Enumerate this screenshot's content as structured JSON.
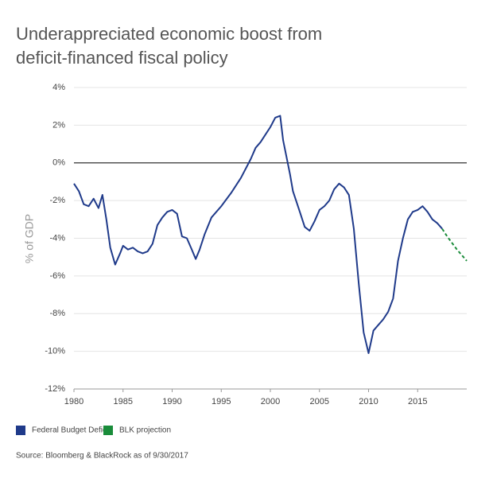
{
  "chart_data": {
    "type": "line",
    "title_lines": [
      "Underappreciated economic boost from",
      "deficit-financed fiscal policy"
    ],
    "y_label": "% of GDP",
    "source": "Source: Bloomberg & BlackRock as of 9/30/2017",
    "xlim": [
      1980,
      2020
    ],
    "xticks": [
      1980,
      1985,
      1990,
      1995,
      2000,
      2005,
      2010,
      2015
    ],
    "ylim": [
      -12,
      4
    ],
    "yticks": [
      {
        "value": 4,
        "label": "4%"
      },
      {
        "value": 2,
        "label": "2%"
      },
      {
        "value": 0,
        "label": "0%"
      },
      {
        "value": -2,
        "label": "-2%"
      },
      {
        "value": -4,
        "label": "-4%"
      },
      {
        "value": -6,
        "label": "-6%"
      },
      {
        "value": -8,
        "label": "-8%"
      },
      {
        "value": -10,
        "label": "-10%"
      },
      {
        "value": -12,
        "label": "-12%"
      }
    ],
    "grid": true,
    "series": [
      {
        "name": "Federal Budget Deficit",
        "color": "#1f3a8a",
        "dashed": false,
        "x": [
          1980,
          1980.5,
          1981,
          1981.5,
          1982,
          1982.5,
          1982.9,
          1983.3,
          1983.7,
          1984.2,
          1984.7,
          1985,
          1985.5,
          1986,
          1986.5,
          1987,
          1987.5,
          1988,
          1988.5,
          1989,
          1989.5,
          1990,
          1990.5,
          1991,
          1991.5,
          1992,
          1992.4,
          1992.8,
          1993.3,
          1994,
          1995,
          1996,
          1997,
          1998,
          1998.5,
          1999,
          1999.5,
          2000,
          2000.5,
          2001,
          2001.3,
          2002,
          2002.3,
          2003,
          2003.5,
          2004,
          2004.5,
          2005,
          2005.5,
          2006,
          2006.5,
          2007,
          2007.5,
          2008,
          2008.5,
          2009,
          2009.5,
          2010,
          2010.5,
          2011,
          2011.5,
          2012,
          2012.5,
          2013,
          2013.5,
          2014,
          2014.5,
          2015,
          2015.5,
          2016,
          2016.5,
          2017,
          2017.5
        ],
        "values": [
          -1.1,
          -1.5,
          -2.2,
          -2.3,
          -1.9,
          -2.4,
          -1.7,
          -3.0,
          -4.5,
          -5.4,
          -4.8,
          -4.4,
          -4.6,
          -4.5,
          -4.7,
          -4.8,
          -4.7,
          -4.3,
          -3.3,
          -2.9,
          -2.6,
          -2.5,
          -2.7,
          -3.9,
          -4.0,
          -4.6,
          -5.1,
          -4.6,
          -3.8,
          -2.9,
          -2.3,
          -1.6,
          -0.8,
          0.2,
          0.8,
          1.1,
          1.5,
          1.9,
          2.4,
          2.5,
          1.2,
          -0.6,
          -1.5,
          -2.6,
          -3.4,
          -3.6,
          -3.1,
          -2.5,
          -2.3,
          -2.0,
          -1.4,
          -1.1,
          -1.3,
          -1.7,
          -3.5,
          -6.4,
          -9.0,
          -10.1,
          -8.9,
          -8.6,
          -8.3,
          -7.9,
          -7.2,
          -5.2,
          -4.0,
          -3.0,
          -2.6,
          -2.5,
          -2.3,
          -2.6,
          -3.0,
          -3.2,
          -3.5
        ]
      },
      {
        "name": "BLK projection",
        "color": "#1a8c3a",
        "dashed": true,
        "x": [
          2017.5,
          2018,
          2019,
          2020
        ],
        "values": [
          -3.5,
          -3.9,
          -4.6,
          -5.2
        ]
      }
    ]
  }
}
